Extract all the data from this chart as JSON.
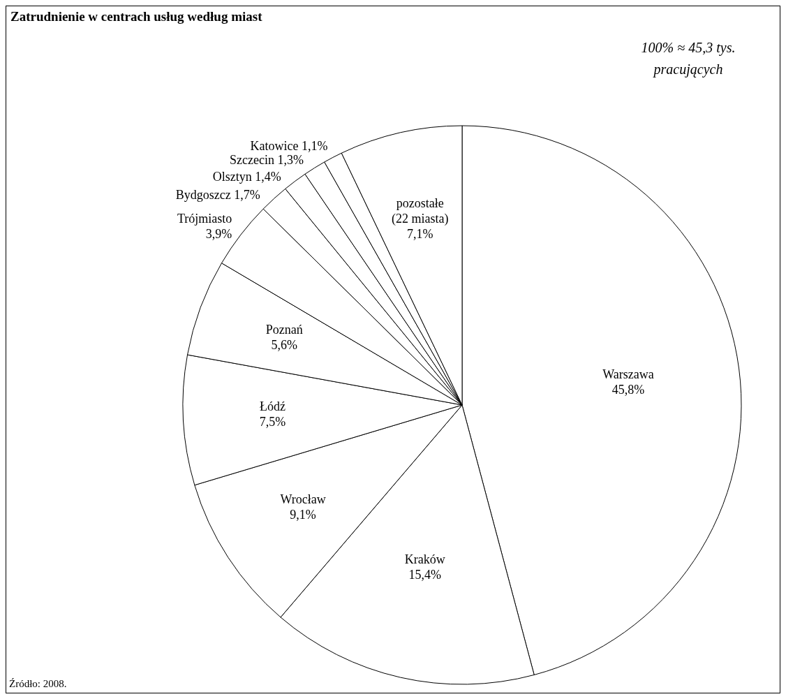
{
  "chart_data": {
    "type": "pie",
    "title": "Zatrudnienie w centrach usług według miast",
    "categories": [
      "Warszawa",
      "Kraków",
      "Wrocław",
      "Łódź",
      "Poznań",
      "Trójmiasto",
      "Bydgoszcz",
      "Olsztyn",
      "Szczecin",
      "Katowice",
      "pozostałe (22 miasta)"
    ],
    "values": [
      45.8,
      15.4,
      9.1,
      7.5,
      5.6,
      3.9,
      1.7,
      1.4,
      1.3,
      1.1,
      7.1
    ],
    "value_labels": [
      "45,8%",
      "15,4%",
      "9,1%",
      "7,5%",
      "5,6%",
      "3,9%",
      "1,7%",
      "1,4%",
      "1,3%",
      "1,1%",
      "7,1%"
    ],
    "colors": [
      "#ffffff",
      "#ffffff",
      "#ffffff",
      "#ffffff",
      "#ffffff",
      "#ffffff",
      "#ffffff",
      "#ffffff",
      "#ffffff",
      "#ffffff",
      "#ffffff"
    ],
    "annotations": [
      "100% ≈ 45,3 tys. pracujących",
      "Źródło: 2008."
    ]
  }
}
